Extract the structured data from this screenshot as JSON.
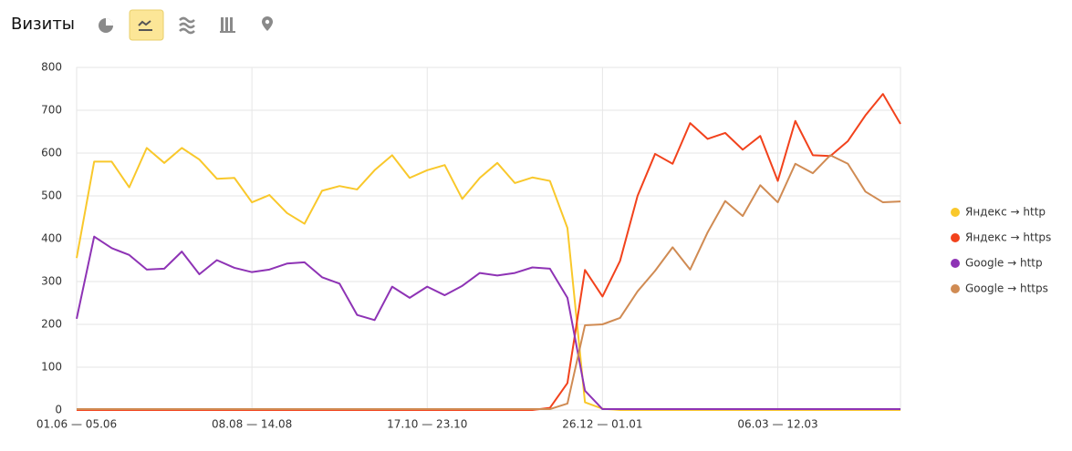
{
  "header": {
    "title": "Визиты"
  },
  "chart_data": {
    "type": "line",
    "legend": "right",
    "grid": true,
    "categories": [
      "01.06 — 05.06",
      null,
      null,
      null,
      null,
      null,
      null,
      null,
      null,
      null,
      "08.08 — 14.08",
      null,
      null,
      null,
      null,
      null,
      null,
      null,
      null,
      null,
      "17.10 — 23.10",
      null,
      null,
      null,
      null,
      null,
      null,
      null,
      null,
      null,
      "26.12 — 01.01",
      null,
      null,
      null,
      null,
      null,
      null,
      null,
      null,
      null,
      "06.03 — 12.03",
      null,
      null,
      null,
      null,
      null,
      null,
      null
    ],
    "ylim": [
      0,
      800
    ],
    "yticks": [
      0,
      100,
      200,
      300,
      400,
      500,
      600,
      700,
      800
    ],
    "series": [
      {
        "name": "Яндекс → http",
        "color": "#f9c82b",
        "values": [
          355,
          580,
          580,
          520,
          612,
          577,
          612,
          585,
          540,
          542,
          485,
          502,
          460,
          435,
          512,
          523,
          515,
          560,
          595,
          542,
          560,
          572,
          493,
          542,
          577,
          530,
          543,
          535,
          425,
          18,
          3,
          0,
          0,
          0,
          0,
          0,
          0,
          0,
          0,
          0,
          0,
          0,
          0,
          0,
          0,
          0,
          0,
          0
        ]
      },
      {
        "name": "Яндекс → https",
        "color": "#f2421c",
        "values": [
          0,
          0,
          0,
          0,
          0,
          0,
          0,
          0,
          0,
          0,
          0,
          0,
          0,
          0,
          0,
          0,
          0,
          0,
          0,
          0,
          0,
          0,
          0,
          0,
          0,
          0,
          0,
          5,
          63,
          327,
          265,
          348,
          500,
          598,
          575,
          670,
          633,
          647,
          608,
          640,
          535,
          675,
          595,
          593,
          628,
          688,
          738,
          668
        ]
      },
      {
        "name": "Google → http",
        "color": "#8e33b5",
        "values": [
          213,
          405,
          378,
          362,
          328,
          330,
          370,
          317,
          350,
          332,
          322,
          328,
          342,
          345,
          310,
          295,
          222,
          210,
          288,
          262,
          288,
          268,
          290,
          320,
          314,
          320,
          333,
          330,
          262,
          45,
          2,
          2,
          2,
          2,
          2,
          2,
          2,
          2,
          2,
          2,
          2,
          2,
          2,
          2,
          2,
          2,
          2,
          2
        ]
      },
      {
        "name": "Google → https",
        "color": "#d08b53",
        "values": [
          2,
          2,
          2,
          2,
          2,
          2,
          2,
          2,
          2,
          2,
          2,
          2,
          2,
          2,
          2,
          2,
          2,
          2,
          2,
          2,
          2,
          2,
          2,
          2,
          2,
          2,
          2,
          2,
          15,
          198,
          200,
          215,
          277,
          325,
          380,
          328,
          415,
          488,
          453,
          525,
          485,
          575,
          553,
          595,
          575,
          510,
          485,
          487
        ]
      }
    ]
  }
}
